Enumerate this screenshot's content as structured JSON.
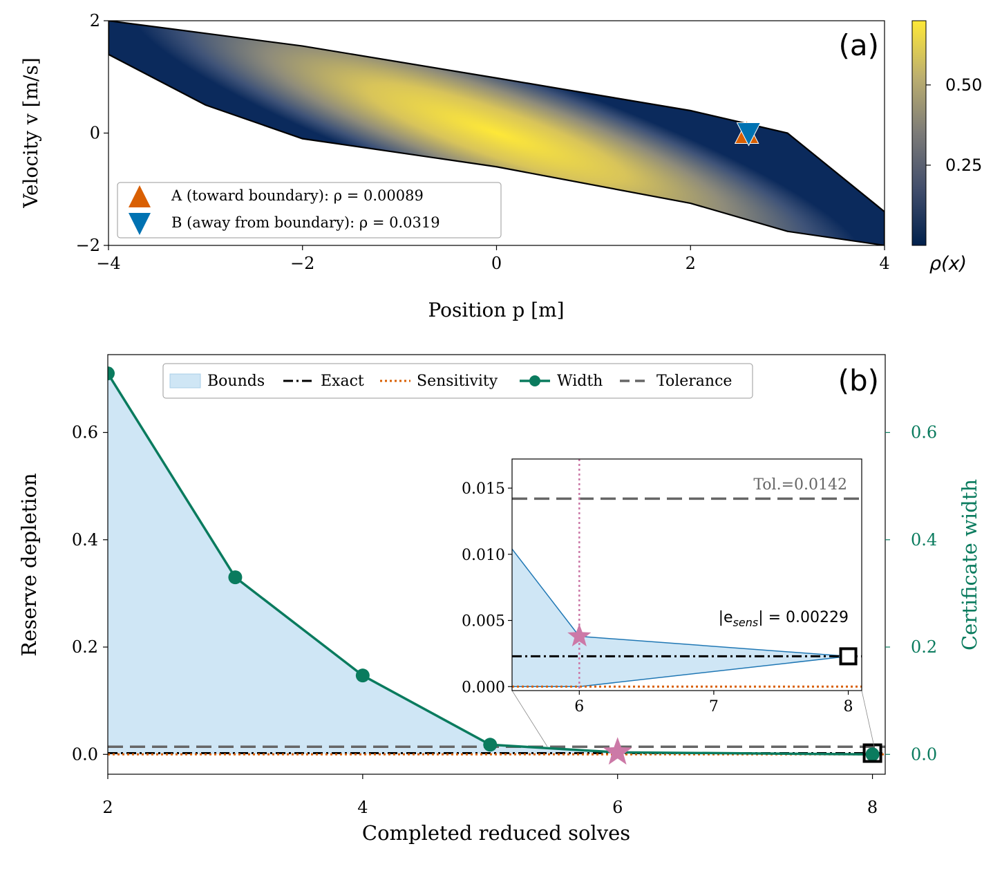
{
  "chart_data": [
    {
      "panel": "(a)",
      "type": "heatmap",
      "xlabel": "Position p [m]",
      "ylabel": "Velocity v [m/s]",
      "xlim": [
        -4,
        4
      ],
      "ylim": [
        -2,
        2
      ],
      "xticks": [
        "−4",
        "−2",
        "0",
        "2",
        "4"
      ],
      "yticks": [
        "−2",
        "0",
        "2"
      ],
      "colorbar": {
        "label": "ρ(x)",
        "range": [
          0,
          0.7
        ],
        "ticks": [
          "0.25",
          "0.50"
        ],
        "colormap": [
          "#00204c",
          "#414d6b",
          "#7c7b78",
          "#bcaf6f",
          "#fee838"
        ]
      },
      "band": {
        "upper_edge": [
          [
            -4,
            2.0
          ],
          [
            -2,
            1.55
          ],
          [
            0,
            0.98
          ],
          [
            2,
            0.4
          ],
          [
            3,
            0.0
          ],
          [
            4,
            -1.4
          ]
        ],
        "lower_edge": [
          [
            -4,
            1.4
          ],
          [
            -3,
            0.5
          ],
          [
            -2,
            -0.1
          ],
          [
            0,
            -0.6
          ],
          [
            2,
            -1.25
          ],
          [
            3,
            -1.75
          ],
          [
            4,
            -2.0
          ]
        ],
        "peak": [
          0,
          0
        ]
      },
      "legend": [
        {
          "label": "A (toward boundary): ρ = 0.00089",
          "marker": "triangle-up",
          "color": "#d95f02"
        },
        {
          "label": "B (away from boundary): ρ = 0.0319",
          "marker": "triangle-down",
          "color": "#0072b2"
        }
      ],
      "points": [
        {
          "name": "A",
          "x": 2.58,
          "y": 0.0,
          "color": "#d95f02"
        },
        {
          "name": "B",
          "x": 2.6,
          "y": 0.0,
          "color": "#0072b2"
        }
      ]
    },
    {
      "panel": "(b)",
      "type": "line",
      "xlabel": "Completed reduced solves",
      "ylabel": "Reserve depletion",
      "ylabel_right": "Certificate width",
      "xlim": [
        2,
        8.1
      ],
      "ylim": [
        -0.037,
        0.745
      ],
      "xticks": [
        "2",
        "4",
        "6",
        "8"
      ],
      "yticks": [
        "0.0",
        "0.2",
        "0.4",
        "0.6"
      ],
      "yticks_right": [
        "0.0",
        "0.2",
        "0.4",
        "0.6"
      ],
      "colors": {
        "bounds": "#cfe6f5",
        "exact": "#000000",
        "sensitivity": "#d95f02",
        "width": "#0a7b5e",
        "tolerance": "#666666",
        "star": "#cc79a7"
      },
      "legend": [
        "Bounds",
        "Exact",
        "Sensitivity",
        "Width",
        "Tolerance"
      ],
      "series": [
        {
          "name": "Width",
          "x": [
            2,
            3,
            4,
            5,
            6,
            8
          ],
          "values": [
            0.71,
            0.33,
            0.147,
            0.018,
            0.0038,
            0.0
          ]
        },
        {
          "name": "Exact",
          "value": 0.00229
        },
        {
          "name": "Sensitivity",
          "value": 0.0
        },
        {
          "name": "Tolerance",
          "value": 0.0142
        }
      ],
      "bounds_upper": [
        [
          2,
          0.71
        ],
        [
          3,
          0.33
        ],
        [
          4,
          0.147
        ],
        [
          5,
          0.018
        ],
        [
          6,
          0.0038
        ],
        [
          8,
          0.00229
        ]
      ],
      "bounds_lower": [
        [
          2,
          0.0
        ],
        [
          8,
          0.00229
        ]
      ],
      "star": {
        "x": 6,
        "y": 0.0038
      },
      "square": {
        "x": 8,
        "y": 0.00229
      },
      "inset": {
        "xlim": [
          5.5,
          8.1
        ],
        "ylim": [
          -0.0003,
          0.0172
        ],
        "xticks": [
          "6",
          "7",
          "8"
        ],
        "yticks": [
          "0.000",
          "0.005",
          "0.010",
          "0.015"
        ],
        "bounds_upper": [
          [
            5.5,
            0.0104
          ],
          [
            6,
            0.0038
          ],
          [
            8,
            0.00229
          ]
        ],
        "bounds_lower": [
          [
            5.5,
            0.0
          ],
          [
            6,
            0.0
          ],
          [
            8,
            0.00229
          ]
        ],
        "tolerance_label": "Tol.=0.0142",
        "esens_label": "|e",
        "esens_sub": "sens",
        "esens_value": "| = 0.00229",
        "vline_x": 6
      }
    }
  ],
  "panel_labels": {
    "a": "(a)",
    "b": "(b)"
  }
}
